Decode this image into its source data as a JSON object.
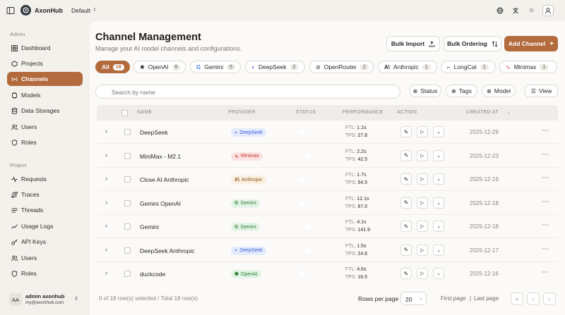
{
  "app": {
    "name": "AxonHub",
    "workspace": "Default"
  },
  "sidebar": {
    "admin_label": "Admin",
    "project_label": "Project",
    "admin_items": [
      {
        "label": "Dashboard",
        "icon": "dashboard-icon"
      },
      {
        "label": "Projects",
        "icon": "projects-icon"
      },
      {
        "label": "Channels",
        "icon": "channels-icon",
        "active": true
      },
      {
        "label": "Models",
        "icon": "models-icon"
      },
      {
        "label": "Data Storages",
        "icon": "database-icon"
      },
      {
        "label": "Users",
        "icon": "users-icon"
      },
      {
        "label": "Roles",
        "icon": "shield-icon"
      }
    ],
    "project_items": [
      {
        "label": "Requests",
        "icon": "activity-icon"
      },
      {
        "label": "Traces",
        "icon": "route-icon"
      },
      {
        "label": "Threads",
        "icon": "threads-icon"
      },
      {
        "label": "Usage Logs",
        "icon": "chart-icon"
      },
      {
        "label": "API Keys",
        "icon": "key-icon"
      },
      {
        "label": "Users",
        "icon": "users-icon"
      },
      {
        "label": "Roles",
        "icon": "shield-icon"
      }
    ],
    "user": {
      "initials": "AA",
      "name": "admin axonhub",
      "email": "my@axonhub.com"
    }
  },
  "header": {
    "title": "Channel Management",
    "subtitle": "Manage your AI model channels and configurations.",
    "bulk_import": "Bulk Import",
    "bulk_ordering": "Bulk Ordering",
    "add_channel": "Add Channel"
  },
  "chips": [
    {
      "label": "All",
      "count": "18"
    },
    {
      "label": "OpenAI",
      "count": "6"
    },
    {
      "label": "Gemini",
      "count": "5"
    },
    {
      "label": "DeepSeek",
      "count": "2"
    },
    {
      "label": "OpenRouter",
      "count": "2"
    },
    {
      "label": "Anthropic",
      "count": "1"
    },
    {
      "label": "LongCat",
      "count": "1"
    },
    {
      "label": "Minimax",
      "count": "1"
    }
  ],
  "search": {
    "placeholder": "Search by name"
  },
  "filters": {
    "status": "Status",
    "tags": "Tags",
    "model": "Model",
    "view": "View"
  },
  "table": {
    "columns": {
      "name": "NAME",
      "provider": "PROVIDER",
      "status": "STATUS",
      "performance": "PERFORMANCE",
      "action": "ACTION",
      "created": "CREATED AT"
    },
    "ftl_label": "FTL:",
    "tps_label": "TPS:",
    "rows": [
      {
        "name": "DeepSeek",
        "provider": "DeepSeek",
        "enabled": false,
        "ftl": "1.1s",
        "tps": "27.8",
        "created": "2025-12-29"
      },
      {
        "name": "MiniMax - M2.1",
        "provider": "Minimax",
        "enabled": true,
        "ftl": "2.2s",
        "tps": "42.5",
        "created": "2025-12-23"
      },
      {
        "name": "Close AI Anthropic",
        "provider": "Anthropic",
        "enabled": false,
        "ftl": "1.7s",
        "tps": "54.5",
        "created": "2025-12-19"
      },
      {
        "name": "Gemini OpenAI",
        "provider": "Gemini",
        "enabled": false,
        "ftl": "12.1s",
        "tps": "87.0",
        "created": "2025-12-18"
      },
      {
        "name": "Gemini",
        "provider": "Gemini",
        "enabled": true,
        "ftl": "4.1s",
        "tps": "141.9",
        "created": "2025-12-18"
      },
      {
        "name": "DeepSeek Anthropic",
        "provider": "DeepSeek",
        "enabled": true,
        "ftl": "1.5s",
        "tps": "24.6",
        "created": "2025-12-17"
      },
      {
        "name": "duckcode",
        "provider": "OpenAI",
        "enabled": false,
        "ftl": "4.6s",
        "tps": "16.5",
        "created": "2025-12-16"
      }
    ]
  },
  "footer": {
    "selection": "0 of 18 row(s) selected / Total 18 row(s)",
    "rows_per_page_label": "Rows per page",
    "rows_per_page": "20",
    "first_page": "First page",
    "separator": "|",
    "last_page": "Last page"
  },
  "colors": {
    "accent": "#b36b3e",
    "background": "#f3f1ec",
    "surface": "#fbfaf8"
  }
}
